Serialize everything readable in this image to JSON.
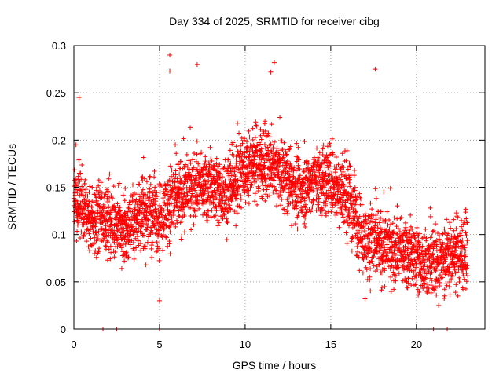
{
  "chart_data": {
    "type": "scatter",
    "title": "Day 334 of 2025, SRMTID for receiver cibg",
    "xlabel": "GPS time / hours",
    "ylabel": "SRMTID / TECUs",
    "xlim": [
      0,
      24
    ],
    "ylim": [
      0,
      0.3
    ],
    "xticks": [
      0,
      5,
      10,
      15,
      20
    ],
    "yticks": [
      0,
      0.05,
      0.1,
      0.15,
      0.2,
      0.25,
      0.3
    ],
    "xtick_labels": [
      "0",
      "5",
      "10",
      "15",
      "20"
    ],
    "ytick_labels": [
      "0",
      "0.05",
      "0.1",
      "0.15",
      "0.2",
      "0.25",
      "0.3"
    ],
    "grid": true,
    "legend": "none",
    "marker": "plus",
    "series_color": "#ff0000",
    "grid_color": "#a0a0a0",
    "series": [
      {
        "name": "SRMTID",
        "trend": [
          {
            "hour": 0.0,
            "value": 0.135
          },
          {
            "hour": 1.0,
            "value": 0.115
          },
          {
            "hour": 2.0,
            "value": 0.12
          },
          {
            "hour": 3.0,
            "value": 0.105
          },
          {
            "hour": 4.0,
            "value": 0.125
          },
          {
            "hour": 5.0,
            "value": 0.12
          },
          {
            "hour": 6.0,
            "value": 0.14
          },
          {
            "hour": 7.0,
            "value": 0.155
          },
          {
            "hour": 8.0,
            "value": 0.15
          },
          {
            "hour": 9.0,
            "value": 0.145
          },
          {
            "hour": 10.0,
            "value": 0.175
          },
          {
            "hour": 11.0,
            "value": 0.18
          },
          {
            "hour": 12.0,
            "value": 0.165
          },
          {
            "hour": 13.0,
            "value": 0.15
          },
          {
            "hour": 14.0,
            "value": 0.155
          },
          {
            "hour": 15.0,
            "value": 0.16
          },
          {
            "hour": 16.0,
            "value": 0.14
          },
          {
            "hour": 17.0,
            "value": 0.095
          },
          {
            "hour": 18.0,
            "value": 0.09
          },
          {
            "hour": 19.0,
            "value": 0.085
          },
          {
            "hour": 20.0,
            "value": 0.075
          },
          {
            "hour": 21.0,
            "value": 0.07
          },
          {
            "hour": 22.0,
            "value": 0.08
          },
          {
            "hour": 23.0,
            "value": 0.085
          }
        ],
        "notable_points": [
          {
            "hour": 0.3,
            "value": 0.245
          },
          {
            "hour": 5.6,
            "value": 0.29
          },
          {
            "hour": 5.6,
            "value": 0.273
          },
          {
            "hour": 7.2,
            "value": 0.28
          },
          {
            "hour": 11.7,
            "value": 0.282
          },
          {
            "hour": 11.5,
            "value": 0.272
          },
          {
            "hour": 17.6,
            "value": 0.275
          },
          {
            "hour": 5.0,
            "value": 0.03
          },
          {
            "hour": 17.0,
            "value": 0.032
          },
          {
            "hour": 21.3,
            "value": 0.025
          }
        ],
        "zero_points": [
          1.7,
          2.5,
          5.0,
          21.0,
          21.8
        ]
      }
    ]
  }
}
